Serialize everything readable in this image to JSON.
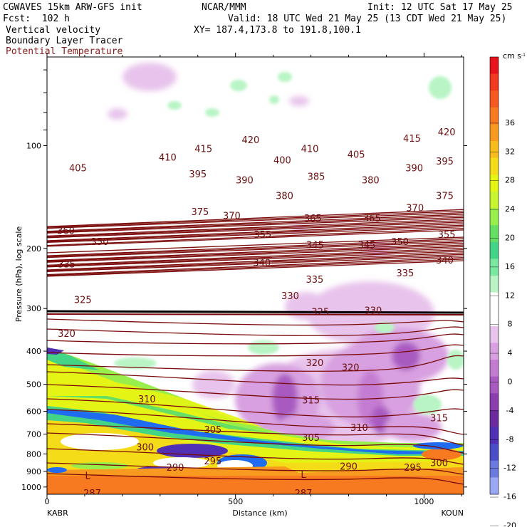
{
  "header": {
    "model": "CGWAVES 15km ARW-GFS init",
    "org": "NCAR/MMM",
    "init": "Init: 12 UTC Sat 17 May 25",
    "fcst": "Fcst:  102 h",
    "valid": "Valid: 18 UTC Wed 21 May 25 (13 CDT Wed 21 May 25)",
    "field1": "Vertical velocity",
    "field2": "Boundary Layer Tracer",
    "field3": "Potential Temperature",
    "xy": "XY= 187.4,173.8 to 191.8,100.1"
  },
  "colors": {
    "theta": "#7a0a0a",
    "theta_label": "#8b1a1a"
  },
  "chart_data": {
    "type": "heatmap",
    "xlabel": "Distance (km)",
    "ylabel": "Pressure (hPa), log scale",
    "xlim": [
      0,
      1105
    ],
    "ylim": [
      1050,
      55
    ],
    "x_ticks": [
      0,
      500,
      1000
    ],
    "y_ticks": [
      100,
      200,
      300,
      400,
      500,
      600,
      700,
      800,
      900,
      1000
    ],
    "left_station": "KABR",
    "right_station": "KOUN",
    "colorbar": {
      "unit": "cm s",
      "unit_exp": "-1",
      "ticks": [
        "36",
        "32",
        "28",
        "24",
        "20",
        "16",
        "12",
        "8",
        "4",
        "0",
        "-4",
        "-8",
        "-12",
        "-16",
        "-20"
      ],
      "colors": [
        "#e8141c",
        "#f23a1e",
        "#f65a20",
        "#f87a20",
        "#f89a20",
        "#f8bc1c",
        "#f4dc18",
        "#e4f414",
        "#c8f430",
        "#98ee4a",
        "#66e064",
        "#44d486",
        "#7ae8a0",
        "#b8f4c4",
        "#ffffff",
        "#ffffff",
        "#e8c4ec",
        "#d8a0e0",
        "#c47cd2",
        "#a85ac0",
        "#8c3eae",
        "#6c2ca0",
        "#5030b4",
        "#4a4ec8",
        "#6a7ae0",
        "#9aa8f4"
      ]
    },
    "theta_labels": [
      {
        "t": "420",
        "x": 540,
        "p": 96
      },
      {
        "t": "405",
        "x": 82,
        "p": 116
      },
      {
        "t": "410",
        "x": 320,
        "p": 108
      },
      {
        "t": "415",
        "x": 415,
        "p": 102
      },
      {
        "t": "420",
        "x": 1060,
        "p": 91
      },
      {
        "t": "415",
        "x": 968,
        "p": 95
      },
      {
        "t": "410",
        "x": 697,
        "p": 102
      },
      {
        "t": "400",
        "x": 624,
        "p": 110
      },
      {
        "t": "405",
        "x": 820,
        "p": 106
      },
      {
        "t": "395",
        "x": 400,
        "p": 121
      },
      {
        "t": "390",
        "x": 524,
        "p": 126
      },
      {
        "t": "385",
        "x": 714,
        "p": 123
      },
      {
        "t": "380",
        "x": 858,
        "p": 126
      },
      {
        "t": "390",
        "x": 974,
        "p": 116
      },
      {
        "t": "395",
        "x": 1055,
        "p": 111
      },
      {
        "t": "380",
        "x": 630,
        "p": 140
      },
      {
        "t": "375",
        "x": 1055,
        "p": 140
      },
      {
        "t": "370",
        "x": 976,
        "p": 152
      },
      {
        "t": "375",
        "x": 406,
        "p": 156
      },
      {
        "t": "370",
        "x": 490,
        "p": 160
      },
      {
        "t": "365",
        "x": 705,
        "p": 163
      },
      {
        "t": "365",
        "x": 862,
        "p": 163
      },
      {
        "t": "360",
        "x": 50,
        "p": 177
      },
      {
        "t": "355",
        "x": 572,
        "p": 182
      },
      {
        "t": "350",
        "x": 140,
        "p": 191
      },
      {
        "t": "345",
        "x": 711,
        "p": 195
      },
      {
        "t": "345",
        "x": 848,
        "p": 195
      },
      {
        "t": "350",
        "x": 936,
        "p": 191
      },
      {
        "t": "355",
        "x": 1060,
        "p": 182
      },
      {
        "t": "340",
        "x": 570,
        "p": 220
      },
      {
        "t": "340",
        "x": 1055,
        "p": 216
      },
      {
        "t": "335",
        "x": 52,
        "p": 222
      },
      {
        "t": "335",
        "x": 710,
        "p": 246
      },
      {
        "t": "335",
        "x": 950,
        "p": 236
      },
      {
        "t": "330",
        "x": 645,
        "p": 275
      },
      {
        "t": "330",
        "x": 865,
        "p": 303
      },
      {
        "t": "325",
        "x": 95,
        "p": 282
      },
      {
        "t": "325",
        "x": 725,
        "p": 306
      },
      {
        "t": "320",
        "x": 52,
        "p": 355
      },
      {
        "t": "320",
        "x": 710,
        "p": 432
      },
      {
        "t": "320",
        "x": 805,
        "p": 445
      },
      {
        "t": "315",
        "x": 700,
        "p": 555
      },
      {
        "t": "315",
        "x": 1040,
        "p": 626
      },
      {
        "t": "310",
        "x": 265,
        "p": 552
      },
      {
        "t": "310",
        "x": 828,
        "p": 668
      },
      {
        "t": "305",
        "x": 700,
        "p": 715
      },
      {
        "t": "305",
        "x": 440,
        "p": 678
      },
      {
        "t": "300",
        "x": 260,
        "p": 762
      },
      {
        "t": "300",
        "x": 1040,
        "p": 848
      },
      {
        "t": "295",
        "x": 440,
        "p": 838
      },
      {
        "t": "295",
        "x": 970,
        "p": 875
      },
      {
        "t": "290",
        "x": 340,
        "p": 875
      },
      {
        "t": "290",
        "x": 800,
        "p": 868
      },
      {
        "t": "287",
        "x": 120,
        "p": 1040
      },
      {
        "t": "287",
        "x": 680,
        "p": 1040
      }
    ],
    "pbl_labels": [
      {
        "t": "L",
        "x": 108,
        "p": 925
      },
      {
        "t": "L",
        "x": 680,
        "p": 918
      }
    ],
    "grid": false
  }
}
